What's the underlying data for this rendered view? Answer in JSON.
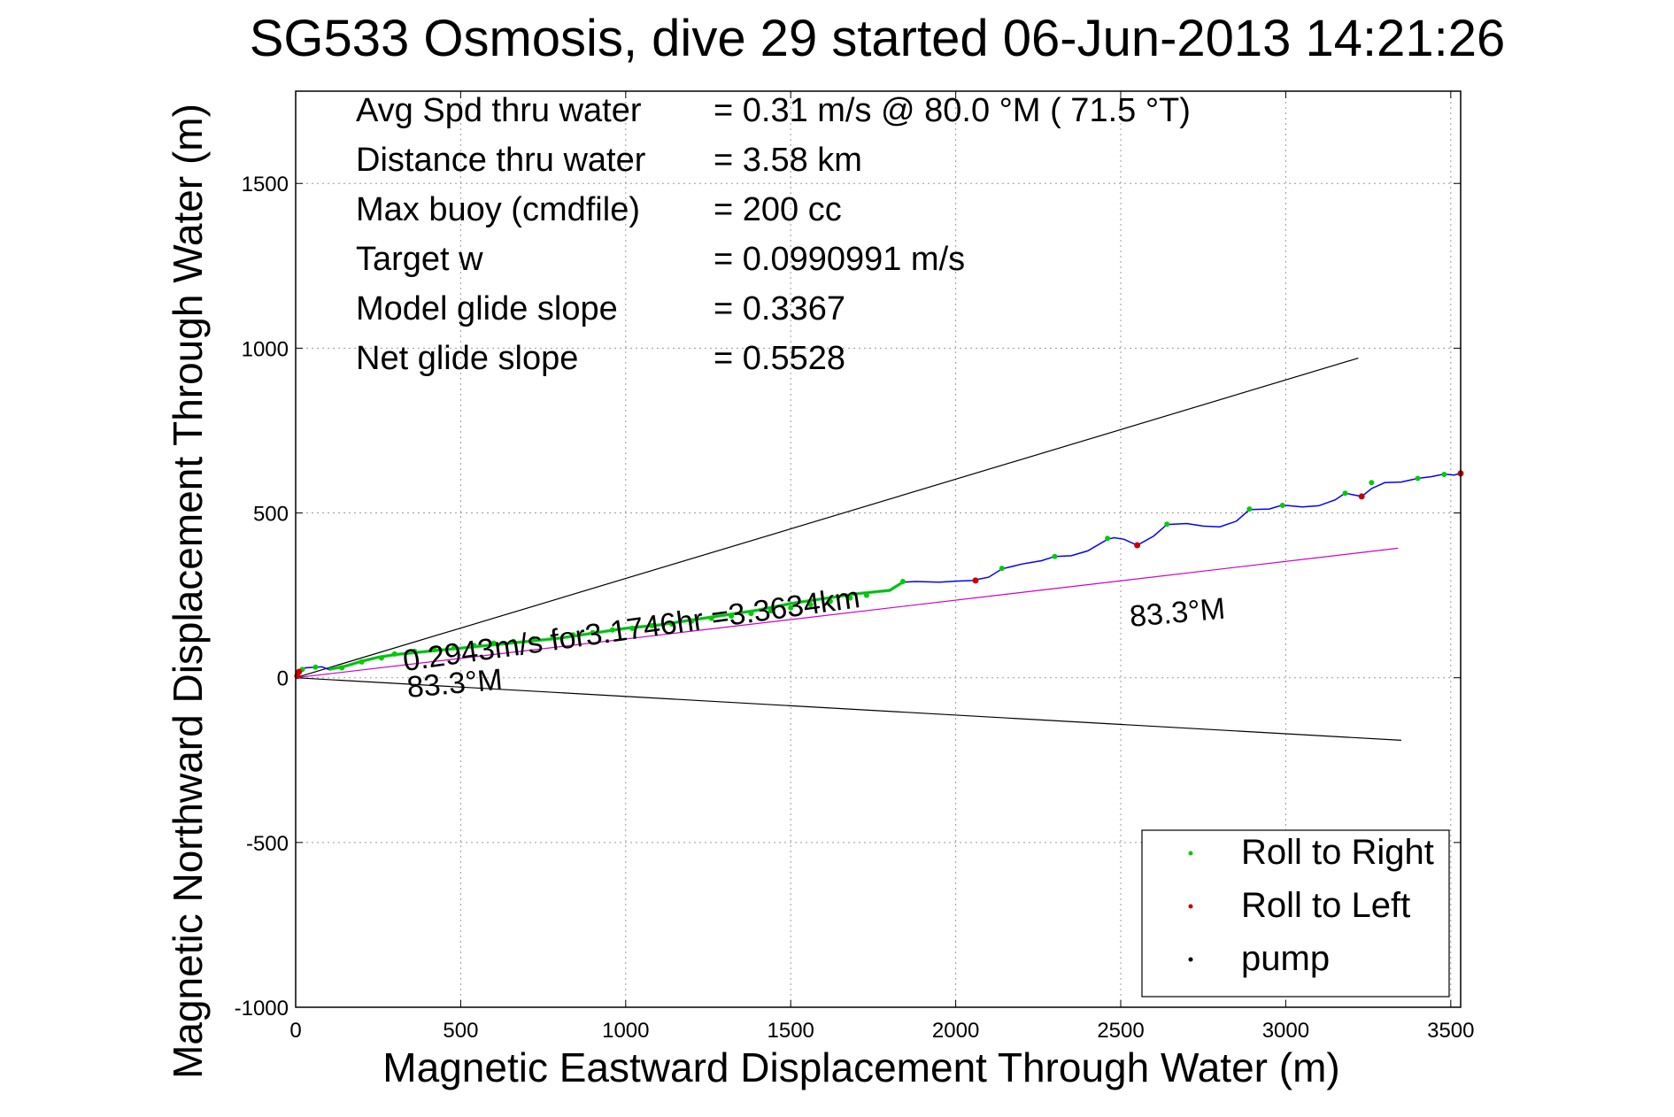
{
  "chart_data": {
    "type": "line",
    "title": "SG533 Osmosis, dive 29 started 06-Jun-2013 14:21:26",
    "xlabel": "Magnetic Eastward Displacement Through Water (m)",
    "ylabel": "Magnetic Northward Displacement Through Water (m)",
    "xlim": [
      0,
      3530
    ],
    "ylim": [
      -1000,
      1780
    ],
    "xticks": [
      0,
      500,
      1000,
      1500,
      2000,
      2500,
      3000,
      3500
    ],
    "yticks": [
      -1000,
      -500,
      0,
      500,
      1000,
      1500
    ],
    "grid": true,
    "legend_position": "bottom-right",
    "legend": [
      {
        "label": "Roll to Right",
        "color": "#00cc00"
      },
      {
        "label": "Roll to Left",
        "color": "#cc0000"
      },
      {
        "label": "pump",
        "color": "#000000"
      }
    ],
    "info": [
      {
        "label": "Avg Spd thru water",
        "value": "=  0.31 m/s @  80.0 °M ( 71.5 °T)"
      },
      {
        "label": "Distance thru water",
        "value": "=  3.58 km"
      },
      {
        "label": "Max buoy (cmdfile)",
        "value": "= 200 cc"
      },
      {
        "label": "Target w",
        "value": "= 0.0990991 m/s"
      },
      {
        "label": "Model glide slope",
        "value": "= 0.3367"
      },
      {
        "label": "Net glide slope",
        "value": "= 0.5528"
      }
    ],
    "annotations": [
      {
        "text": "0.2943m/s for3.1746hr =3.3634km",
        "x": 330,
        "y": 20
      },
      {
        "text": "83.3°M",
        "x": 340,
        "y": -60
      },
      {
        "text": "83.3°M",
        "x": 2530,
        "y": 155
      }
    ],
    "series": [
      {
        "role": "upper-bound",
        "color": "#000000",
        "x": [
          0,
          3220
        ],
        "y": [
          0,
          970
        ]
      },
      {
        "role": "lower-bound",
        "color": "#000000",
        "x": [
          0,
          3350
        ],
        "y": [
          0,
          -190
        ]
      },
      {
        "role": "heading-line",
        "color": "#cc00cc",
        "x": [
          0,
          3340
        ],
        "y": [
          0,
          393
        ]
      },
      {
        "role": "track",
        "color": "#0000ff",
        "x": [
          0,
          30,
          80,
          100,
          150,
          200,
          250,
          300,
          400,
          500,
          600,
          700,
          800,
          900,
          1000,
          1100,
          1200,
          1300,
          1400,
          1500,
          1600,
          1700,
          1800,
          1840,
          1880,
          1950,
          2000,
          2050,
          2100,
          2140,
          2200,
          2260,
          2300,
          2350,
          2400,
          2460,
          2480,
          2510,
          2550,
          2600,
          2640,
          2700,
          2750,
          2800,
          2850,
          2890,
          2950,
          2990,
          3050,
          3100,
          3150,
          3180,
          3230,
          3260,
          3300,
          3350,
          3400,
          3440,
          3480,
          3510,
          3530
        ],
        "y": [
          15,
          30,
          33,
          25,
          35,
          50,
          62,
          70,
          80,
          90,
          100,
          110,
          120,
          135,
          150,
          160,
          175,
          190,
          205,
          225,
          240,
          255,
          265,
          290,
          292,
          290,
          293,
          295,
          305,
          330,
          345,
          355,
          368,
          370,
          385,
          420,
          425,
          420,
          402,
          430,
          465,
          468,
          460,
          458,
          475,
          510,
          512,
          524,
          518,
          522,
          540,
          560,
          550,
          574,
          592,
          594,
          605,
          610,
          618,
          615,
          620
        ]
      }
    ],
    "roll_right_points": {
      "x": [
        20,
        60,
        140,
        200,
        260,
        300,
        360,
        420,
        480,
        540,
        600,
        660,
        720,
        780,
        840,
        900,
        960,
        1020,
        1080,
        1140,
        1200,
        1260,
        1320,
        1380,
        1440,
        1500,
        1560,
        1620,
        1680,
        1730,
        1840,
        2140,
        2300,
        2460,
        2640,
        2890,
        2990,
        3180,
        3260,
        3400,
        3480
      ],
      "y": [
        25,
        32,
        30,
        48,
        60,
        72,
        80,
        85,
        92,
        98,
        105,
        110,
        118,
        124,
        130,
        137,
        145,
        150,
        158,
        163,
        172,
        180,
        187,
        195,
        203,
        212,
        222,
        232,
        242,
        250,
        292,
        332,
        368,
        423,
        466,
        512,
        523,
        560,
        592,
        605,
        617
      ]
    },
    "roll_left_points": {
      "x": [
        5,
        10,
        2060,
        2550,
        3230,
        3530
      ],
      "y": [
        5,
        18,
        295,
        402,
        550,
        620
      ]
    }
  }
}
